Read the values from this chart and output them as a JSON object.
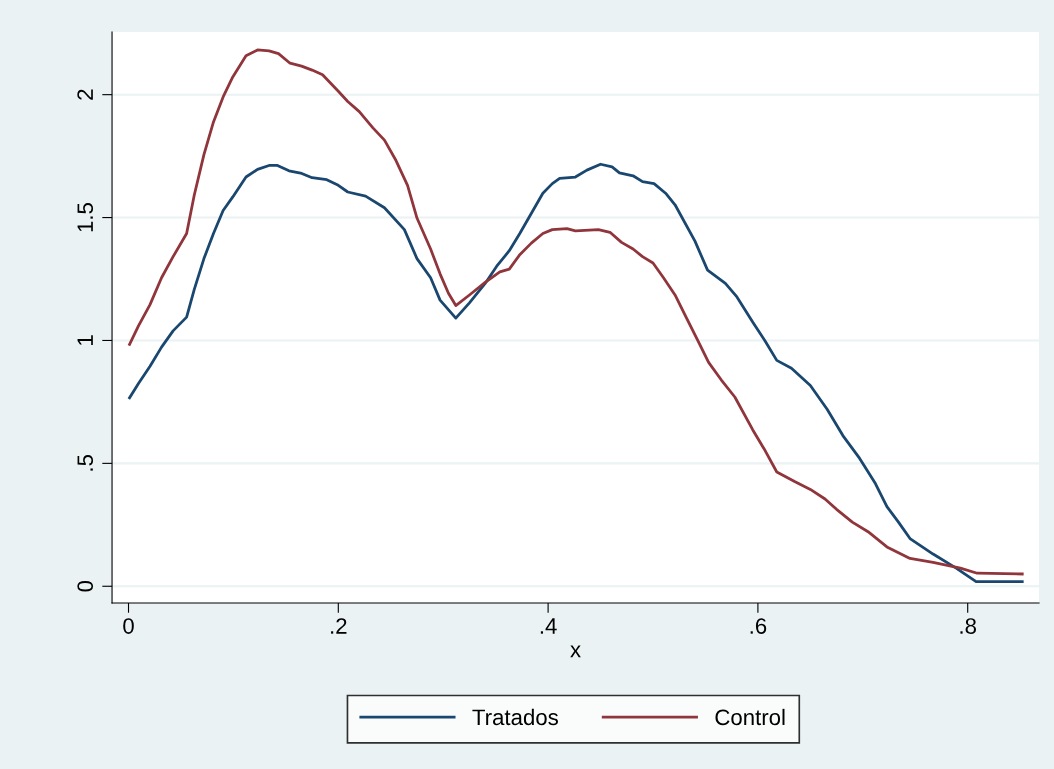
{
  "chart_data": {
    "type": "line",
    "xlabel": "x",
    "grid": "y",
    "legend": "bottom",
    "marker": "none",
    "line_style": "solid",
    "xlim": [
      -0.0157,
      0.868
    ],
    "ylim": [
      -0.068,
      2.255
    ],
    "xticks": [
      0,
      {
        "value": 0.2,
        "label": ".2"
      },
      {
        "value": 0.4,
        "label": ".4"
      },
      {
        "value": 0.6,
        "label": ".6"
      },
      {
        "value": 0.8,
        "label": ".8"
      }
    ],
    "yticks": [
      0,
      {
        "value": 0.5,
        "label": ".5"
      },
      1,
      {
        "value": 1.5,
        "label": "1.5"
      },
      2
    ],
    "series": [
      {
        "name": "Tratados",
        "color": "#1a476f",
        "x": [
          0.001,
          0.0095,
          0.0205,
          0.0315,
          0.0425,
          0.0554,
          0.0627,
          0.0719,
          0.081,
          0.0902,
          0.0994,
          0.112,
          0.123,
          0.134,
          0.142,
          0.153,
          0.164,
          0.175,
          0.189,
          0.2,
          0.209,
          0.226,
          0.244,
          0.263,
          0.275,
          0.288,
          0.297,
          0.312,
          0.325,
          0.34,
          0.351,
          0.363,
          0.373,
          0.395,
          0.404,
          0.411,
          0.426,
          0.437,
          0.45,
          0.461,
          0.468,
          0.481,
          0.49,
          0.501,
          0.512,
          0.521,
          0.54,
          0.552,
          0.569,
          0.58,
          0.595,
          0.607,
          0.618,
          0.632,
          0.65,
          0.666,
          0.681,
          0.697,
          0.712,
          0.723,
          0.734,
          0.745,
          0.767,
          0.789,
          0.808,
          0.852
        ],
        "values": [
          0.767,
          0.825,
          0.895,
          0.973,
          1.039,
          1.095,
          1.208,
          1.333,
          1.435,
          1.529,
          1.584,
          1.665,
          1.696,
          1.712,
          1.712,
          1.69,
          1.681,
          1.662,
          1.654,
          1.631,
          1.604,
          1.587,
          1.54,
          1.451,
          1.333,
          1.255,
          1.164,
          1.091,
          1.153,
          1.232,
          1.302,
          1.365,
          1.435,
          1.599,
          1.638,
          1.659,
          1.665,
          1.693,
          1.717,
          1.706,
          1.682,
          1.67,
          1.646,
          1.638,
          1.599,
          1.552,
          1.404,
          1.286,
          1.232,
          1.177,
          1.075,
          0.997,
          0.919,
          0.887,
          0.817,
          0.72,
          0.613,
          0.52,
          0.418,
          0.324,
          0.261,
          0.194,
          0.131,
          0.074,
          0.019,
          0.019
        ]
      },
      {
        "name": "Control",
        "color": "#90353b",
        "x": [
          0.001,
          0.0095,
          0.0205,
          0.0315,
          0.0425,
          0.0554,
          0.0627,
          0.0719,
          0.081,
          0.0902,
          0.0994,
          0.112,
          0.123,
          0.134,
          0.143,
          0.154,
          0.165,
          0.175,
          0.185,
          0.2,
          0.209,
          0.22,
          0.233,
          0.244,
          0.255,
          0.266,
          0.275,
          0.288,
          0.297,
          0.305,
          0.312,
          0.325,
          0.34,
          0.354,
          0.363,
          0.373,
          0.384,
          0.395,
          0.404,
          0.418,
          0.426,
          0.448,
          0.459,
          0.47,
          0.481,
          0.49,
          0.5,
          0.51,
          0.521,
          0.532,
          0.543,
          0.553,
          0.565,
          0.578,
          0.595,
          0.607,
          0.618,
          0.635,
          0.65,
          0.664,
          0.675,
          0.69,
          0.705,
          0.723,
          0.745,
          0.767,
          0.793,
          0.809,
          0.852
        ],
        "values": [
          0.984,
          1.059,
          1.146,
          1.255,
          1.341,
          1.435,
          1.592,
          1.756,
          1.889,
          1.991,
          2.072,
          2.158,
          2.182,
          2.178,
          2.167,
          2.128,
          2.116,
          2.1,
          2.081,
          2.014,
          1.972,
          1.931,
          1.865,
          1.815,
          1.732,
          1.631,
          1.498,
          1.372,
          1.271,
          1.192,
          1.142,
          1.185,
          1.236,
          1.279,
          1.29,
          1.349,
          1.396,
          1.435,
          1.451,
          1.455,
          1.446,
          1.451,
          1.44,
          1.399,
          1.372,
          1.341,
          1.315,
          1.255,
          1.185,
          1.091,
          0.997,
          0.911,
          0.84,
          0.77,
          0.637,
          0.551,
          0.465,
          0.426,
          0.394,
          0.355,
          0.313,
          0.261,
          0.222,
          0.16,
          0.113,
          0.097,
          0.074,
          0.053,
          0.05
        ]
      }
    ]
  }
}
